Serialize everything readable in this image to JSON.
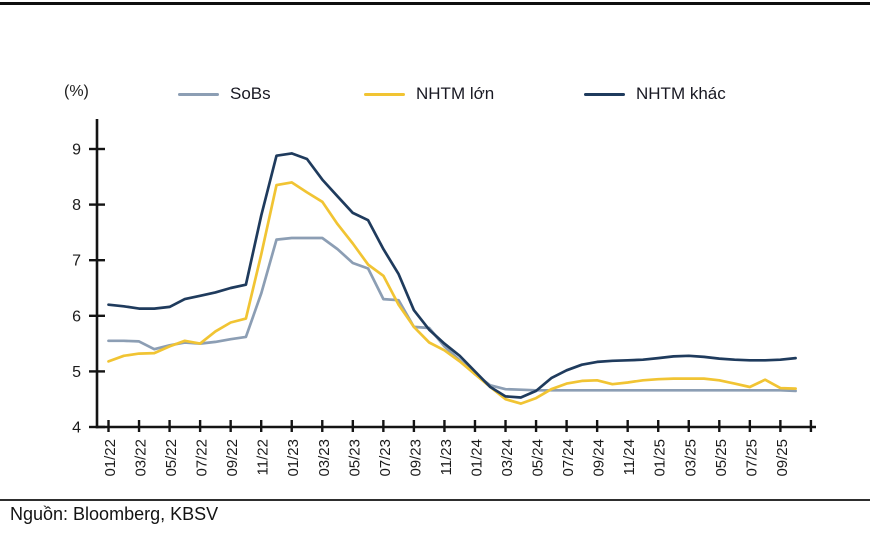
{
  "page": {
    "unit_label": "(%)",
    "source_label": "Nguồn: Bloomberg, KBSV"
  },
  "chart_data": {
    "type": "line",
    "title": "",
    "ylabel": "(%)",
    "xlabel": "",
    "grid": false,
    "legend_position": "top",
    "ylim": [
      4,
      9.55
    ],
    "y_ticks": [
      4,
      5,
      6,
      7,
      8,
      9
    ],
    "x_tick_every": 2,
    "categories": [
      "01/22",
      "02/22",
      "03/22",
      "04/22",
      "05/22",
      "06/22",
      "07/22",
      "08/22",
      "09/22",
      "10/22",
      "11/22",
      "12/22",
      "01/23",
      "02/23",
      "03/23",
      "04/23",
      "05/23",
      "06/23",
      "07/23",
      "08/23",
      "09/23",
      "10/23",
      "11/23",
      "12/23",
      "01/24",
      "02/24",
      "03/24",
      "04/24",
      "05/24",
      "06/24",
      "07/24",
      "08/24",
      "09/24",
      "10/24",
      "11/24",
      "12/24",
      "01/25",
      "02/25",
      "03/25",
      "04/25",
      "05/25",
      "06/25",
      "07/25",
      "08/25",
      "09/25",
      "10/25"
    ],
    "series": [
      {
        "name": "SoBs",
        "color": "#8C9EB4",
        "values": [
          5.55,
          5.55,
          5.54,
          5.4,
          5.47,
          5.52,
          5.5,
          5.53,
          5.58,
          5.62,
          6.4,
          7.37,
          7.4,
          7.4,
          7.4,
          7.2,
          6.95,
          6.85,
          6.3,
          6.28,
          5.8,
          5.78,
          5.45,
          5.2,
          4.95,
          4.75,
          4.68,
          4.67,
          4.66,
          4.66,
          4.66,
          4.66,
          4.66,
          4.66,
          4.66,
          4.66,
          4.66,
          4.66,
          4.66,
          4.66,
          4.66,
          4.66,
          4.66,
          4.66,
          4.66,
          4.65
        ]
      },
      {
        "name": "NHTM lớn",
        "color": "#F1C433",
        "values": [
          5.18,
          5.28,
          5.32,
          5.33,
          5.45,
          5.55,
          5.5,
          5.72,
          5.88,
          5.95,
          7.1,
          8.35,
          8.4,
          8.22,
          8.05,
          7.65,
          7.3,
          6.92,
          6.72,
          6.2,
          5.8,
          5.52,
          5.38,
          5.18,
          4.95,
          4.72,
          4.5,
          4.42,
          4.52,
          4.68,
          4.78,
          4.83,
          4.84,
          4.77,
          4.8,
          4.84,
          4.86,
          4.87,
          4.87,
          4.87,
          4.84,
          4.78,
          4.72,
          4.85,
          4.7,
          4.69
        ]
      },
      {
        "name": "NHTM khác",
        "color": "#1F3B5D",
        "values": [
          6.2,
          6.17,
          6.13,
          6.13,
          6.16,
          6.3,
          6.36,
          6.42,
          6.5,
          6.56,
          7.8,
          8.88,
          8.92,
          8.82,
          8.45,
          8.15,
          7.85,
          7.72,
          7.2,
          6.75,
          6.1,
          5.75,
          5.5,
          5.28,
          5.0,
          4.72,
          4.55,
          4.53,
          4.65,
          4.88,
          5.02,
          5.12,
          5.17,
          5.19,
          5.2,
          5.21,
          5.24,
          5.27,
          5.28,
          5.26,
          5.23,
          5.21,
          5.2,
          5.2,
          5.21,
          5.24
        ]
      }
    ]
  }
}
